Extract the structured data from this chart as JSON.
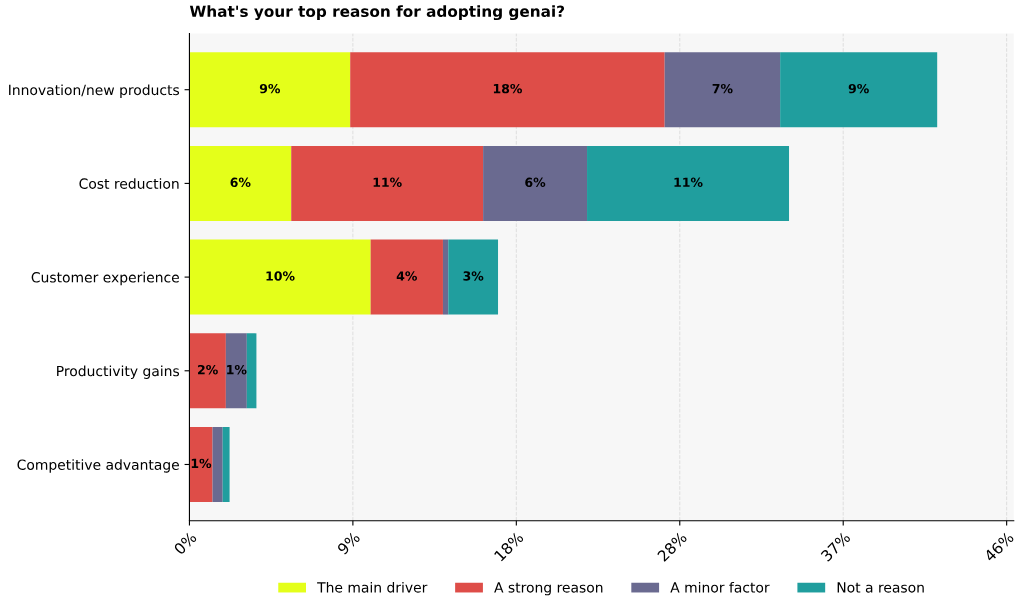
{
  "chart_data": {
    "type": "bar",
    "orientation": "horizontal",
    "stacked": true,
    "title": "What's your top reason for adopting genai?",
    "categories": [
      "Innovation/new products",
      "Cost reduction",
      "Customer experience",
      "Productivity gains",
      "Competitive advantage"
    ],
    "series": [
      {
        "name": "The main driver",
        "color": "#e4ff1a",
        "values": [
          9.05,
          5.73,
          10.2,
          0,
          0
        ],
        "value_labels": [
          "9%",
          "6%",
          "10%",
          null,
          null
        ]
      },
      {
        "name": "A strong reason",
        "color": "#de4d48",
        "values": [
          17.7,
          10.8,
          4.07,
          2.05,
          1.3
        ],
        "value_labels": [
          "18%",
          "11%",
          "4%",
          "2%",
          "1%"
        ]
      },
      {
        "name": "A minor factor",
        "color": "#6a6a90",
        "values": [
          6.5,
          5.85,
          0.3,
          1.18,
          0.57
        ],
        "value_labels": [
          "7%",
          "6%",
          null,
          "1%",
          null
        ]
      },
      {
        "name": "Not a reason",
        "color": "#209e9e",
        "values": [
          8.84,
          11.37,
          2.8,
          0.54,
          0.39
        ],
        "value_labels": [
          "9%",
          "11%",
          "3%",
          null,
          null
        ]
      }
    ],
    "xlim": [
      0,
      46.4
    ],
    "xticks": [
      {
        "value": 0,
        "label": "0%"
      },
      {
        "value": 9.2,
        "label": "9%"
      },
      {
        "value": 18.4,
        "label": "18%"
      },
      {
        "value": 27.6,
        "label": "28%"
      },
      {
        "value": 36.8,
        "label": "37%"
      },
      {
        "value": 46,
        "label": "46%"
      }
    ],
    "grid": "x",
    "legend": "bottom"
  }
}
